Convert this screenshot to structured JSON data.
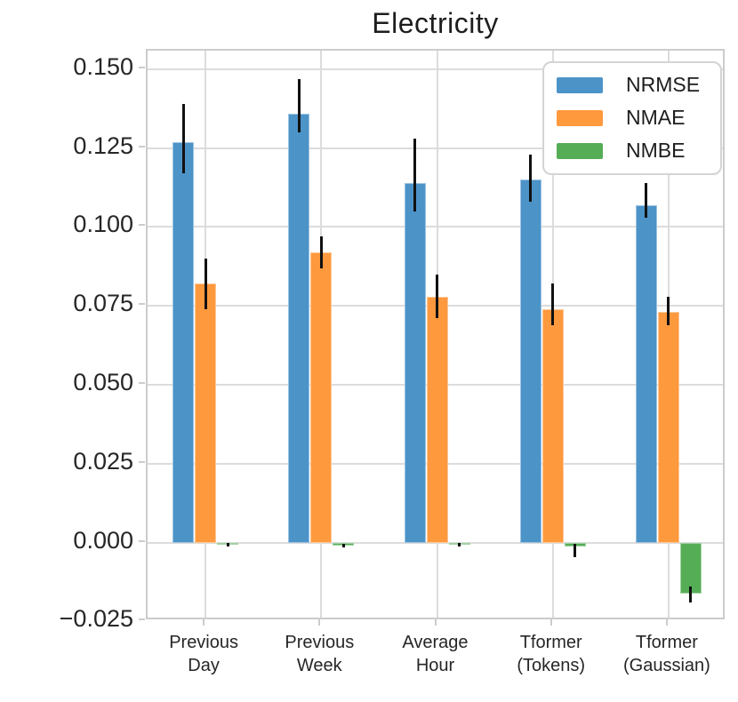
{
  "chart_data": {
    "type": "bar",
    "title": "Electricity",
    "xlabel": "",
    "ylabel": "",
    "categories": [
      "Previous\nDay",
      "Previous\nWeek",
      "Average\nHour",
      "Tformer\n(Tokens)",
      "Tformer\n(Gaussian)"
    ],
    "category_ids": [
      "previous-day",
      "previous-week",
      "average-hour",
      "tformer-tokens",
      "tformer-gaussian"
    ],
    "series": [
      {
        "name": "NRMSE",
        "color": "#4C93C8",
        "values": [
          0.127,
          0.136,
          0.114,
          0.115,
          0.107
        ],
        "err_low": [
          0.117,
          0.13,
          0.105,
          0.108,
          0.103
        ],
        "err_high": [
          0.139,
          0.147,
          0.128,
          0.123,
          0.114
        ]
      },
      {
        "name": "NMAE",
        "color": "#FF993E",
        "values": [
          0.082,
          0.092,
          0.078,
          0.074,
          0.073
        ],
        "err_low": [
          0.074,
          0.087,
          0.071,
          0.069,
          0.069
        ],
        "err_high": [
          0.09,
          0.097,
          0.085,
          0.082,
          0.078
        ]
      },
      {
        "name": "NMBE",
        "color": "#55AD56",
        "values": [
          -0.0005,
          -0.001,
          -0.0005,
          -0.0012,
          -0.0163
        ],
        "err_low": [
          -0.0012,
          -0.0016,
          -0.0012,
          -0.0047,
          -0.019
        ],
        "err_high": [
          0.0,
          -0.0003,
          0.0,
          -0.0005,
          -0.014
        ]
      }
    ],
    "ylim": [
      -0.025,
      0.156
    ],
    "yticks": [
      {
        "value": 0.15,
        "label": "0.150"
      },
      {
        "value": 0.125,
        "label": "0.125"
      },
      {
        "value": 0.1,
        "label": "0.100"
      },
      {
        "value": 0.075,
        "label": "0.075"
      },
      {
        "value": 0.05,
        "label": "0.050"
      },
      {
        "value": 0.025,
        "label": "0.025"
      },
      {
        "value": 0.0,
        "label": "0.000"
      },
      {
        "value": -0.025,
        "label": "−0.025"
      }
    ],
    "grid": "both",
    "legend_position": "upper right",
    "style": {
      "grid_color": "#dcdcdc",
      "spine_color": "#cccccc",
      "text_color": "#262626",
      "errorbar_color": "#111111",
      "background": "#ffffff"
    }
  }
}
